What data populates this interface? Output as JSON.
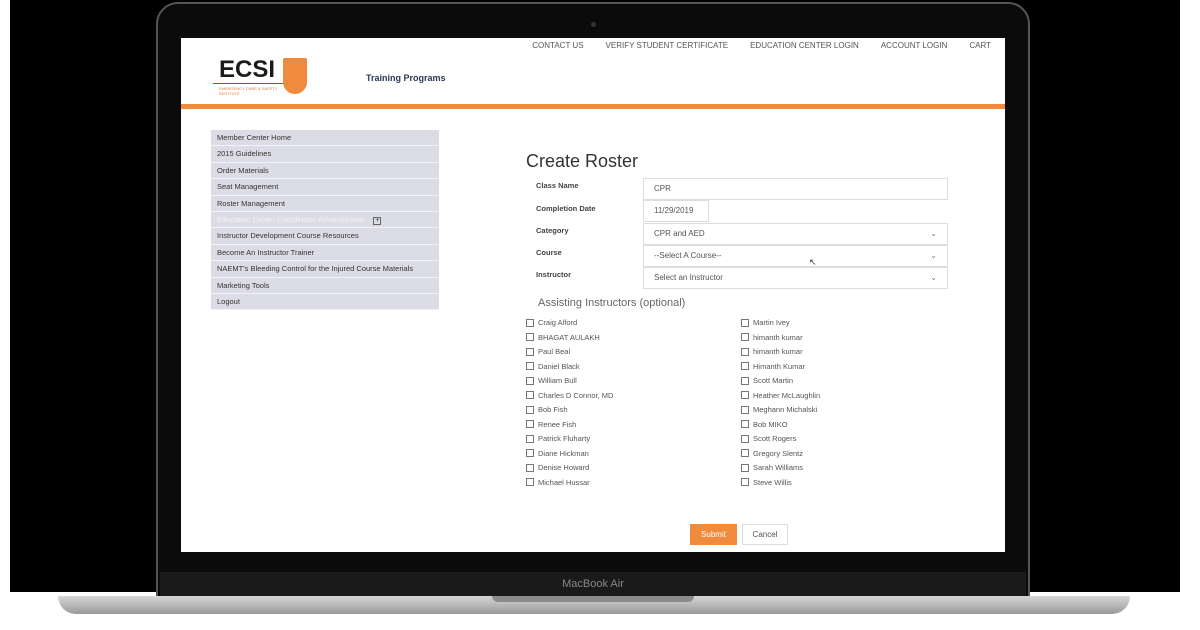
{
  "device_label": "MacBook Air",
  "top_links": [
    "CONTACT US",
    "VERIFY STUDENT CERTIFICATE",
    "EDUCATION CENTER LOGIN",
    "ACCOUNT LOGIN",
    "CART"
  ],
  "logo": {
    "text": "ECSI",
    "sub": "EMERGENCY CARE & SAFETY INSTITUTE"
  },
  "nav_title": "Training Programs",
  "sidebar": [
    "Member Center Home",
    "2015 Guidelines",
    "Order Materials",
    "Seat Management",
    "Roster Management",
    "Education Center Coordinator Administration",
    "Instructor Development Course Resources",
    "Become An Instructor Trainer",
    "NAEMT's Bleeding Control for the Injured Course Materials",
    "Marketing Tools",
    "Logout"
  ],
  "form": {
    "title": "Create Roster",
    "class_name_label": "Class Name",
    "class_name": "CPR",
    "date_label": "Completion Date",
    "date": "11/29/2019",
    "category_label": "Category",
    "category": "CPR and AED",
    "course_label": "Course",
    "course": "--Select A Course--",
    "instructor_label": "Instructor",
    "instructor": "Select an Instructor",
    "assisting_label": "Assisting Instructors (optional)",
    "assist_left": [
      "Craig Alford",
      "BHAGAT AULAKH",
      "Paul Beal",
      "Daniel Black",
      "William Bull",
      "Charles D Connor, MD",
      "Bob Fish",
      "Renee Fish",
      "Patrick Fluharty",
      "Diane Hickman",
      "Denise Howard",
      "Michael Hussar"
    ],
    "assist_right": [
      "Martin Ivey",
      "himanth kumar",
      "himanth kumar",
      "Himanth Kumar",
      "Scott Martin",
      "Heather McLaughlin",
      "Meghann Michalski",
      "Bob MIKO",
      "Scott Rogers",
      "Gregory Slentz",
      "Sarah Williams",
      "Steve Willis"
    ],
    "submit": "Submit",
    "cancel": "Cancel"
  },
  "colors": {
    "accent": "#f08a3c",
    "sidebar": "#dcdce6"
  }
}
